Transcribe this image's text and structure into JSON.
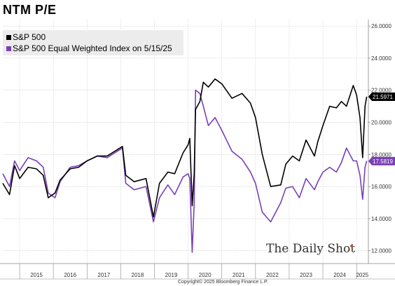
{
  "title": "NTM P/E",
  "watermark": "The Daily Shot",
  "copyright": "Copyright© 2025 Bloomberg Finance L.P.",
  "colors": {
    "sp500": "#000000",
    "equal_weight": "#7a3fb5",
    "grid": "#c8c8c8"
  },
  "chart_data": {
    "type": "line",
    "title": "NTM P/E",
    "xlabel": "",
    "ylabel": "",
    "xlim": [
      2014.5,
      2025.35
    ],
    "ylim": [
      11.2,
      26.4
    ],
    "y_axis_side": "right",
    "grid": true,
    "legend_position": "top-left",
    "x_ticks": [
      {
        "label": "2015",
        "value": 2015.5
      },
      {
        "label": "2016",
        "value": 2016.5
      },
      {
        "label": "2017",
        "value": 2017.5
      },
      {
        "label": "2018",
        "value": 2018.5
      },
      {
        "label": "2019",
        "value": 2019.5
      },
      {
        "label": "2020",
        "value": 2020.5
      },
      {
        "label": "2021",
        "value": 2021.5
      },
      {
        "label": "2022",
        "value": 2022.5
      },
      {
        "label": "2023",
        "value": 2023.5
      },
      {
        "label": "2024",
        "value": 2024.5
      },
      {
        "label": "2025",
        "value": 2025.17
      }
    ],
    "y_ticks": [
      "12.0000",
      "14.0000",
      "16.0000",
      "18.0000",
      "20.0000",
      "22.0000",
      "24.0000",
      "26.0000"
    ],
    "series": [
      {
        "name": "S&P 500",
        "last_value": 21.5971,
        "last_label": "21.5971",
        "x": [
          2014.5,
          2014.7,
          2014.85,
          2015.0,
          2015.25,
          2015.5,
          2015.7,
          2015.85,
          2016.05,
          2016.2,
          2016.5,
          2016.75,
          2017.0,
          2017.3,
          2017.6,
          2017.9,
          2018.05,
          2018.15,
          2018.4,
          2018.75,
          2018.97,
          2019.15,
          2019.4,
          2019.6,
          2019.85,
          2020.0,
          2020.05,
          2020.12,
          2020.18,
          2020.22,
          2020.35,
          2020.45,
          2020.6,
          2020.8,
          2021.0,
          2021.3,
          2021.6,
          2021.85,
          2022.0,
          2022.2,
          2022.45,
          2022.75,
          2022.9,
          2023.1,
          2023.3,
          2023.5,
          2023.75,
          2023.85,
          2024.0,
          2024.2,
          2024.4,
          2024.55,
          2024.7,
          2024.9,
          2025.0,
          2025.1,
          2025.18,
          2025.25,
          2025.3
        ],
        "y": [
          16.2,
          15.5,
          17.3,
          16.5,
          17.2,
          17.1,
          16.7,
          15.3,
          15.6,
          16.4,
          17.1,
          17.2,
          17.6,
          17.9,
          17.9,
          18.3,
          18.5,
          16.7,
          16.3,
          16.5,
          14.1,
          16.2,
          16.9,
          16.8,
          18.1,
          18.6,
          19.0,
          14.8,
          16.8,
          20.8,
          21.3,
          22.5,
          22.2,
          22.7,
          22.4,
          21.5,
          21.8,
          21.2,
          20.3,
          18.0,
          16.0,
          16.1,
          17.4,
          17.9,
          17.6,
          18.9,
          17.9,
          18.8,
          19.8,
          21.0,
          20.9,
          21.3,
          21.0,
          22.3,
          21.7,
          20.3,
          17.8,
          21.0,
          21.6
        ]
      },
      {
        "name": "S&P 500 Equal Weighted Index on 5/15/25",
        "last_value": 17.5819,
        "last_label": "17.5819",
        "x": [
          2014.5,
          2014.7,
          2014.85,
          2015.0,
          2015.25,
          2015.5,
          2015.7,
          2015.85,
          2016.05,
          2016.2,
          2016.5,
          2016.75,
          2017.0,
          2017.3,
          2017.6,
          2017.9,
          2018.05,
          2018.15,
          2018.4,
          2018.75,
          2018.97,
          2019.15,
          2019.4,
          2019.6,
          2019.85,
          2020.0,
          2020.05,
          2020.12,
          2020.18,
          2020.22,
          2020.35,
          2020.45,
          2020.6,
          2020.8,
          2021.0,
          2021.3,
          2021.6,
          2021.85,
          2022.0,
          2022.2,
          2022.45,
          2022.75,
          2022.9,
          2023.1,
          2023.3,
          2023.5,
          2023.75,
          2023.85,
          2024.0,
          2024.2,
          2024.4,
          2024.55,
          2024.7,
          2024.9,
          2025.0,
          2025.1,
          2025.18,
          2025.25,
          2025.3
        ],
        "y": [
          16.8,
          16.0,
          17.6,
          17.0,
          17.8,
          17.6,
          17.2,
          15.6,
          15.3,
          16.3,
          17.2,
          17.3,
          17.6,
          17.9,
          17.8,
          18.2,
          18.4,
          16.2,
          15.8,
          16.0,
          13.8,
          15.3,
          16.1,
          15.5,
          16.6,
          16.8,
          16.5,
          11.9,
          15.0,
          22.0,
          21.8,
          21.0,
          19.8,
          20.3,
          19.5,
          18.2,
          17.7,
          16.9,
          16.2,
          14.4,
          13.8,
          15.0,
          15.9,
          16.0,
          15.3,
          16.5,
          15.8,
          16.3,
          16.9,
          17.2,
          16.9,
          17.5,
          18.4,
          17.6,
          17.6,
          16.7,
          15.2,
          17.2,
          17.6
        ]
      }
    ]
  }
}
